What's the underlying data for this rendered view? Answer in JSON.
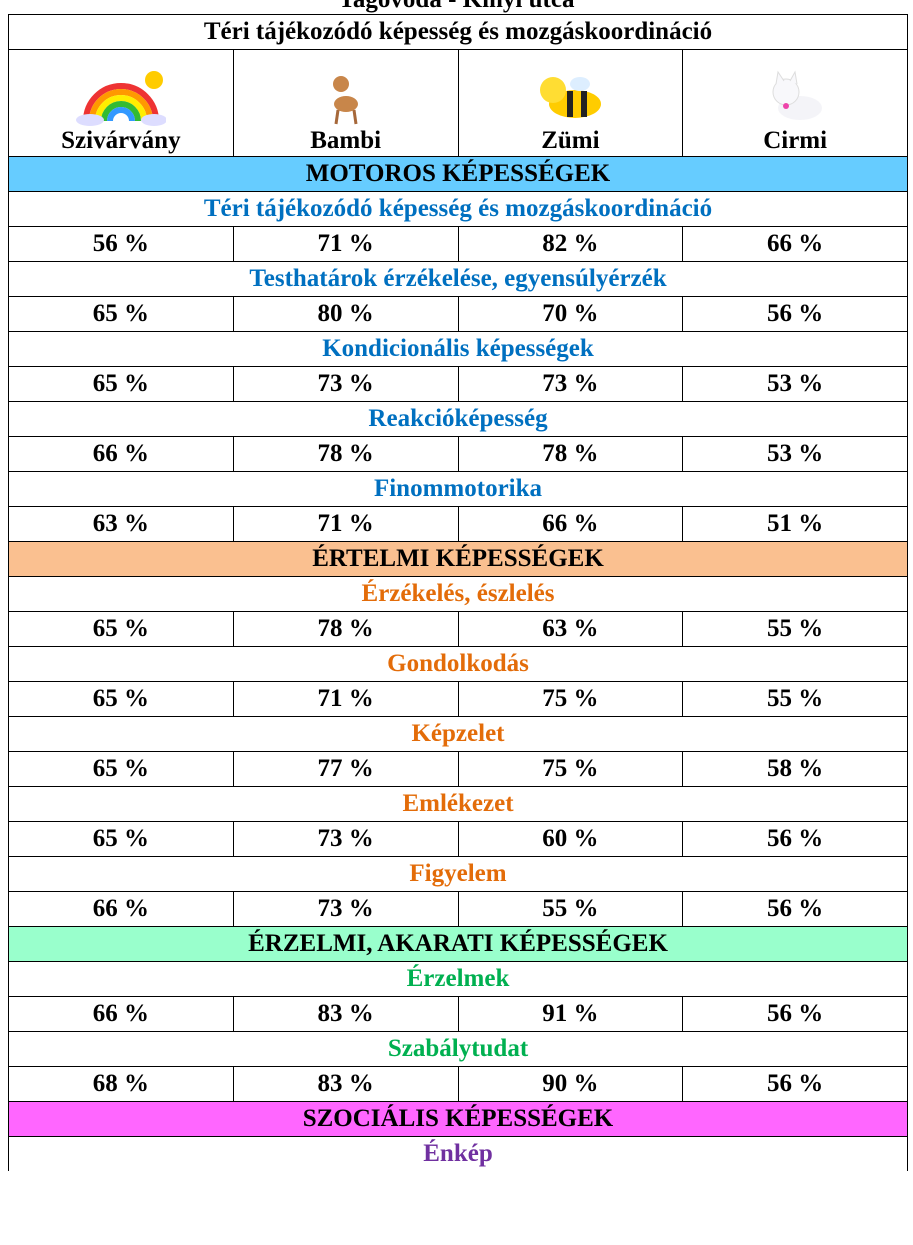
{
  "header": {
    "title": "Tagóvoda - Kinyi utca"
  },
  "table": {
    "title": "Téri tájékozódó képesség és mozgáskoordináció",
    "columns": [
      "Szivárvány",
      "Bambi",
      "Zümi",
      "Cirmi"
    ],
    "sections": [
      {
        "title": "MOTOROS KÉPESSÉGEK",
        "groups": [
          {
            "label": "Téri tájékozódó képesség és mozgáskoordináció",
            "values": [
              "56 %",
              "71 %",
              "82 %",
              "66 %"
            ]
          },
          {
            "label": "Testhatárok érzékelése, egyensúlyérzék",
            "values": [
              "65 %",
              "80 %",
              "70 %",
              "56 %"
            ]
          },
          {
            "label": "Kondicionális képességek",
            "values": [
              "65 %",
              "73 %",
              "73 %",
              "53 %"
            ]
          },
          {
            "label": "Reakcióképesség",
            "values": [
              "66 %",
              "78 %",
              "78 %",
              "53 %"
            ]
          },
          {
            "label": "Finommotorika",
            "values": [
              "63 %",
              "71 %",
              "66 %",
              "51 %"
            ]
          }
        ]
      },
      {
        "title": "ÉRTELMI KÉPESSÉGEK",
        "groups": [
          {
            "label": "Érzékelés, észlelés",
            "values": [
              "65 %",
              "78 %",
              "63 %",
              "55 %"
            ]
          },
          {
            "label": "Gondolkodás",
            "values": [
              "65 %",
              "71 %",
              "75 %",
              "55 %"
            ]
          },
          {
            "label": "Képzelet",
            "values": [
              "65 %",
              "77 %",
              "75 %",
              "58 %"
            ]
          },
          {
            "label": "Emlékezet",
            "values": [
              "65 %",
              "73 %",
              "60 %",
              "56 %"
            ]
          },
          {
            "label": "Figyelem",
            "values": [
              "66 %",
              "73 %",
              "55 %",
              "56 %"
            ]
          }
        ]
      },
      {
        "title": "ÉRZELMI, AKARATI KÉPESSÉGEK",
        "groups": [
          {
            "label": "Érzelmek",
            "values": [
              "66 %",
              "83 %",
              "91 %",
              "56 %"
            ]
          },
          {
            "label": "Szabálytudat",
            "values": [
              "68 %",
              "83 %",
              "90 %",
              "56 %"
            ]
          }
        ]
      },
      {
        "title": "SZOCIÁLIS KÉPESSÉGEK",
        "groups": [
          {
            "label": "Énkép"
          }
        ]
      }
    ]
  }
}
